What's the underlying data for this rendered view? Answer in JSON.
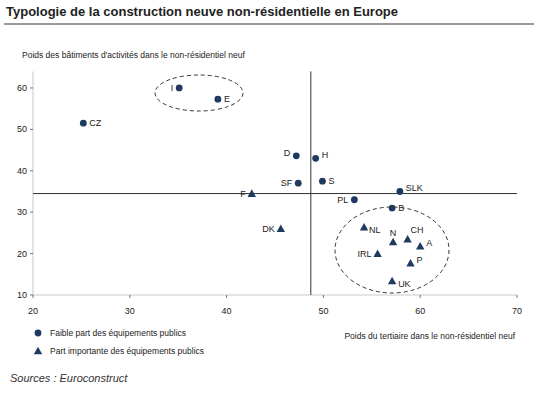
{
  "chart_data": {
    "type": "scatter",
    "title": "Typologie de la construction neuve non-résidentielle en Europe",
    "y_label": "Poids des bâtiments d'activités dans le non-résidentiel neuf",
    "x_label": "Poids du tertiaire dans le non-résidentiel neuf",
    "source": "Sources : Euroconstruct",
    "xlim": [
      20,
      70
    ],
    "xticks": [
      20,
      30,
      40,
      50,
      60,
      70
    ],
    "ylim": [
      10,
      64
    ],
    "yticks": [
      10,
      20,
      30,
      40,
      50,
      60
    ],
    "reference_lines": [
      {
        "axis": "x",
        "value": 48.7
      },
      {
        "axis": "y",
        "value": 34.5
      }
    ],
    "series": [
      {
        "name": "Faible part des équipements publics",
        "color": "#1f3a5f",
        "marker": "circle",
        "labels": [
          "I",
          "E",
          "CZ",
          "D",
          "H",
          "SF",
          "S",
          "PL",
          "SLK",
          "B"
        ],
        "x": [
          35.1,
          39.1,
          25.2,
          47.2,
          49.2,
          47.4,
          49.9,
          53.2,
          57.9,
          57.1
        ],
        "values": [
          60,
          57.3,
          51.5,
          43.6,
          43,
          37,
          37.5,
          33,
          35,
          31
        ]
      },
      {
        "name": "Part importante des équipements publics",
        "color": "#1f3a5f",
        "marker": "triangle",
        "labels": [
          "F",
          "DK",
          "NL",
          "N",
          "CH",
          "A",
          "IRL",
          "P",
          "UK"
        ],
        "x": [
          42.6,
          45.6,
          54.2,
          57.2,
          58.7,
          60,
          55.6,
          59,
          57.1
        ],
        "values": [
          34.5,
          26,
          26.4,
          22.8,
          23.5,
          21.8,
          20,
          17.7,
          13.4
        ]
      }
    ]
  }
}
